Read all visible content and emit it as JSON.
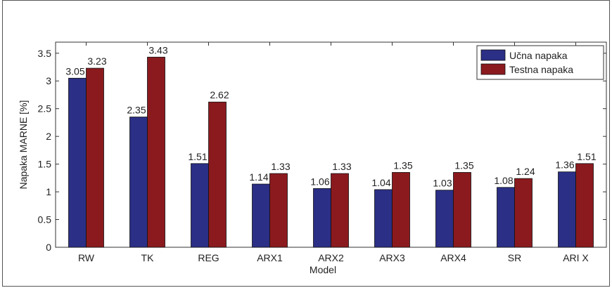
{
  "chart_data": {
    "type": "bar",
    "categories": [
      "RW",
      "TK",
      "REG",
      "ARX1",
      "ARX2",
      "ARX3",
      "ARX4",
      "SR",
      "ARI X"
    ],
    "series": [
      {
        "name": "Učna napaka",
        "color": "#2b2f86",
        "values": [
          3.05,
          2.35,
          1.51,
          1.14,
          1.06,
          1.04,
          1.03,
          1.08,
          1.36
        ],
        "labels": [
          "3.05",
          "2.35",
          "1.51",
          "1.14",
          "1.06",
          "1.04",
          "1.03",
          "1.08",
          "1.36"
        ]
      },
      {
        "name": "Testna napaka",
        "color": "#8b1a1e",
        "values": [
          3.23,
          3.43,
          2.62,
          1.33,
          1.33,
          1.35,
          1.35,
          1.24,
          1.51
        ],
        "labels": [
          "3.23",
          "3.43",
          "2.62",
          "1.33",
          "1.33",
          "1.35",
          "1.35",
          "1.24",
          "1.51"
        ]
      }
    ],
    "xlabel": "Model",
    "ylabel": "Napaka MARNE [%]",
    "ylim": [
      0,
      3.7
    ],
    "yticks": [
      "0",
      "0.5",
      "1",
      "1.5",
      "2",
      "2.5",
      "3",
      "3.5"
    ],
    "grid": false,
    "legend_position": "top-right"
  }
}
